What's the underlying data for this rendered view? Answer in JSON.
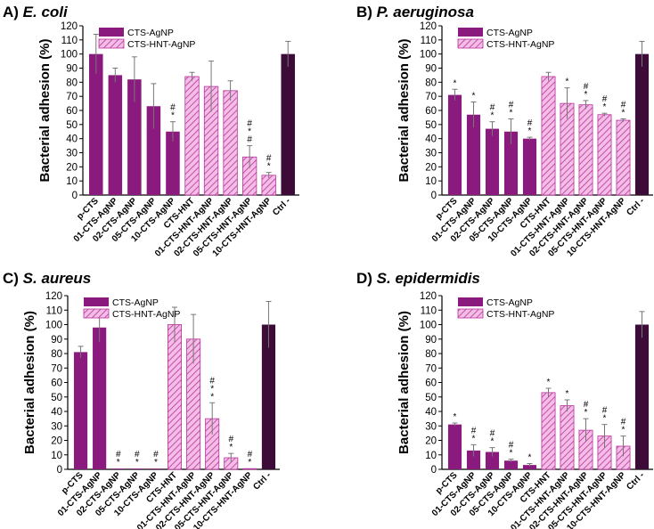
{
  "figure": {
    "legend_entries": [
      "CTS-AgNP",
      "CTS-HNT-AgNP"
    ],
    "colors": {
      "cts_agnp": "#8b1a7f",
      "cts_hnt_agnp_fill": "#f4bde6",
      "cts_hnt_agnp_hatch": "#b8329c",
      "ctrl": "#3d0b37",
      "error_bar": "#777777",
      "axis": "#000000"
    }
  },
  "chart_data": [
    {
      "type": "bar",
      "panel_label": "A)",
      "organism": "E. coli",
      "ylabel": "Bacterial adhesion (%)",
      "xlabel": "",
      "ylim": [
        0,
        120
      ],
      "yticks": [
        0,
        10,
        20,
        30,
        40,
        50,
        60,
        70,
        80,
        90,
        100,
        110,
        120
      ],
      "legend_placement": "top-left",
      "legend": [
        "CTS-AgNP",
        "CTS-HNT-AgNP"
      ],
      "categories": [
        "p-CTS",
        "01-CTS-AgNP",
        "02-CTS-AgNP",
        "05-CTS-AgNP",
        "10-CTS-AgNP",
        "CTS-HNT",
        "01-CTS-HNT-AgNP",
        "02-CTS-HNT-AgNP",
        "05-CTS-HNT-AgNP",
        "10-CTS-HNT-AgNP",
        "Ctrl -"
      ],
      "groups": [
        "CTS-AgNP",
        "CTS-AgNP",
        "CTS-AgNP",
        "CTS-AgNP",
        "CTS-AgNP",
        "CTS-HNT-AgNP",
        "CTS-HNT-AgNP",
        "CTS-HNT-AgNP",
        "CTS-HNT-AgNP",
        "CTS-HNT-AgNP",
        "Ctrl"
      ],
      "values": [
        100,
        85,
        82,
        63,
        45,
        84,
        77,
        74,
        27,
        14,
        100
      ],
      "errors": [
        14,
        5,
        16,
        16,
        7,
        3,
        18,
        7,
        8,
        2,
        9
      ],
      "annotations": [
        "",
        "",
        "",
        "",
        "#\n*",
        "",
        "",
        "",
        "#\n*\n#",
        "#\n*",
        ""
      ]
    },
    {
      "type": "bar",
      "panel_label": "B)",
      "organism": "P. aeruginosa",
      "ylabel": "Bacterial adhesion (%)",
      "xlabel": "",
      "ylim": [
        0,
        120
      ],
      "yticks": [
        0,
        10,
        20,
        30,
        40,
        50,
        60,
        70,
        80,
        90,
        100,
        110,
        120
      ],
      "legend_placement": "top-left",
      "legend": [
        "CTS-AgNP",
        "CTS-HNT-AgNP"
      ],
      "categories": [
        "p-CTS",
        "01-CTS-AgNP",
        "02-CTS-AgNP",
        "05-CTS-AgNP",
        "10-CTS-AgNP",
        "CTS-HNT",
        "01-CTS-HNT-AgNP",
        "02-CTS-HNT-AgNP",
        "05-CTS-HNT-AgNP",
        "10-CTS-HNT-AgNP",
        "Ctrl -"
      ],
      "groups": [
        "CTS-AgNP",
        "CTS-AgNP",
        "CTS-AgNP",
        "CTS-AgNP",
        "CTS-AgNP",
        "CTS-HNT-AgNP",
        "CTS-HNT-AgNP",
        "CTS-HNT-AgNP",
        "CTS-HNT-AgNP",
        "CTS-HNT-AgNP",
        "Ctrl"
      ],
      "values": [
        71,
        57,
        47,
        45,
        40,
        84,
        65,
        64,
        57,
        53,
        100
      ],
      "errors": [
        4,
        9,
        5,
        9,
        1,
        3,
        11,
        3,
        1,
        1,
        9
      ],
      "annotations": [
        "*",
        "*",
        "#\n*",
        "#\n*",
        "#\n*",
        "",
        "*",
        "#\n*",
        "#\n*",
        "#\n*",
        ""
      ]
    },
    {
      "type": "bar",
      "panel_label": "C)",
      "organism": "S. aureus",
      "ylabel": "Bacterial adhesion (%)",
      "xlabel": "",
      "ylim": [
        0,
        120
      ],
      "yticks": [
        0,
        10,
        20,
        30,
        40,
        50,
        60,
        70,
        80,
        90,
        100,
        110,
        120
      ],
      "legend_placement": "top-left",
      "legend": [
        "CTS-AgNP",
        "CTS-HNT-AgNP"
      ],
      "categories": [
        "p-CTS",
        "01-CTS-AgNP",
        "02-CTS-AgNP",
        "05-CTS-AgNP",
        "10-CTS-AgNP",
        "CTS-HNT",
        "01-CTS-HNT-AgNP",
        "02-CTS-HNT-AgNP",
        "05-CTS-HNT-AgNP",
        "10-CTS-HNT-AgNP",
        "Ctrl -"
      ],
      "groups": [
        "CTS-AgNP",
        "CTS-AgNP",
        "CTS-AgNP",
        "CTS-AgNP",
        "CTS-AgNP",
        "CTS-HNT-AgNP",
        "CTS-HNT-AgNP",
        "CTS-HNT-AgNP",
        "CTS-HNT-AgNP",
        "CTS-HNT-AgNP",
        "Ctrl"
      ],
      "values": [
        81,
        98,
        0.5,
        0.5,
        0.5,
        100,
        90,
        35,
        8,
        0.5,
        100
      ],
      "errors": [
        4,
        10,
        0,
        0,
        0,
        12,
        17,
        11,
        3,
        0,
        16
      ],
      "annotations": [
        "",
        "",
        "#\n*",
        "#\n*",
        "#\n*",
        "",
        "",
        "#\n*\n*",
        "#\n*",
        "#\n*",
        ""
      ]
    },
    {
      "type": "bar",
      "panel_label": "D)",
      "organism": "S. epidermidis",
      "ylabel": "Bacterial adhesion (%)",
      "xlabel": "",
      "ylim": [
        0,
        120
      ],
      "yticks": [
        0,
        10,
        20,
        30,
        40,
        50,
        60,
        70,
        80,
        90,
        100,
        110,
        120
      ],
      "legend_placement": "top-left",
      "legend": [
        "CTS-AgNP",
        "CTS-HNT-AgNP"
      ],
      "categories": [
        "p-CTS",
        "01-CTS-AgNP",
        "02-CTS-AgNP",
        "05-CTS-AgNP",
        "10-CTS-AgNP",
        "CTS-HNT",
        "01-CTS-HNT-AgNP",
        "02-CTS-HNT-AgNP",
        "05-CTS-HNT-AgNP",
        "10-CTS-HNT-AgNP",
        "Ctrl -"
      ],
      "groups": [
        "CTS-AgNP",
        "CTS-AgNP",
        "CTS-AgNP",
        "CTS-AgNP",
        "CTS-AgNP",
        "CTS-HNT-AgNP",
        "CTS-HNT-AgNP",
        "CTS-HNT-AgNP",
        "CTS-HNT-AgNP",
        "CTS-HNT-AgNP",
        "Ctrl"
      ],
      "values": [
        31,
        13,
        12,
        6,
        3,
        53,
        44,
        27,
        23,
        16,
        100
      ],
      "errors": [
        1,
        4,
        3,
        1,
        1,
        3,
        4,
        8,
        8,
        7,
        9
      ],
      "annotations": [
        "*",
        "#\n*",
        "#\n*",
        "#\n*",
        "*",
        "*",
        "*",
        "#\n*",
        "#\n*",
        "#\n*",
        ""
      ]
    }
  ]
}
